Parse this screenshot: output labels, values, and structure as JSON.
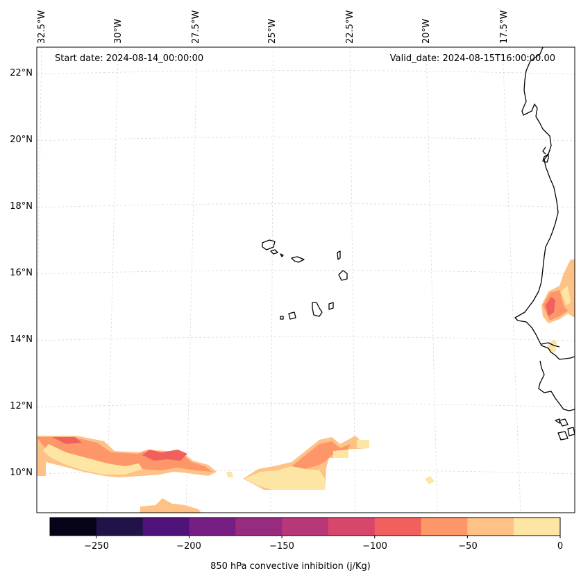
{
  "header": {
    "start_date": "Start date: 2024-08-14_00:00:00",
    "valid_date": "Valid_date: 2024-08-15T16:00:00.00"
  },
  "longitude_labels": [
    "32.5°W",
    "30°W",
    "27.5°W",
    "25°W",
    "22.5°W",
    "20°W",
    "17.5°W"
  ],
  "latitude_labels": [
    "22°N",
    "20°N",
    "18°N",
    "16°N",
    "14°N",
    "12°N",
    "10°N"
  ],
  "colorbar": {
    "title": "850 hPa convective inhibition (j/Kg)",
    "ticks": [
      "−250",
      "−200",
      "−150",
      "−100",
      "−50",
      "0"
    ],
    "levels": [
      -275,
      -250,
      -225,
      -200,
      -175,
      -150,
      -125,
      -100,
      -75,
      -50,
      -25,
      0
    ],
    "colors": [
      "#050418",
      "#211349",
      "#4f137a",
      "#741f81",
      "#962b7f",
      "#b73779",
      "#d9466c",
      "#f1605d",
      "#fd9668",
      "#fec287",
      "#fde6a3"
    ]
  },
  "fills": {
    "level_m100": "#f1605d",
    "level_m75": "#fd9668",
    "level_m50": "#fec287",
    "level_m25": "#fde6a3"
  },
  "coast_color": "#000000",
  "grid_color": "#d9d9d9"
}
